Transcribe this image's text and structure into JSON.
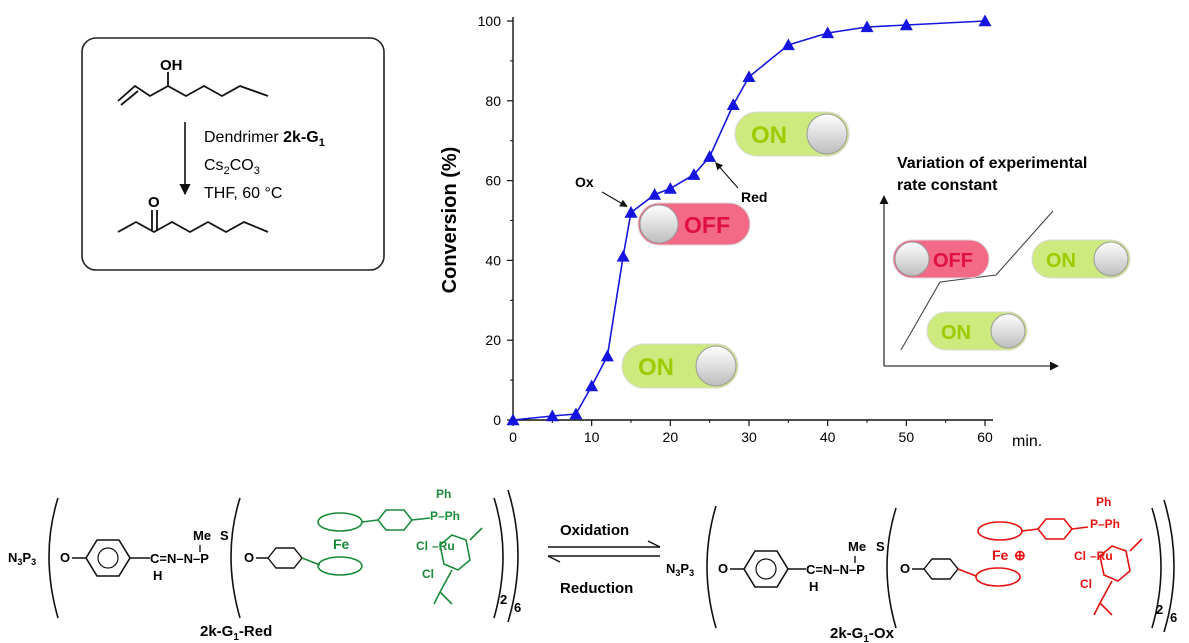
{
  "reaction": {
    "reagent_prefix": "Dendrimer ",
    "reagent_bold": "2k-G",
    "reagent_sub": "1",
    "base_main": "Cs",
    "base_sub1": "2",
    "base_mid": "CO",
    "base_sub2": "3",
    "conditions": "THF, 60 °C",
    "oh_label": "OH",
    "o_label": "O"
  },
  "chart_data": {
    "type": "line",
    "title": "",
    "xlabel": "min.",
    "ylabel": "Conversion (%)",
    "xlim": [
      0,
      62
    ],
    "ylim": [
      0,
      100
    ],
    "x_ticks": [
      0,
      10,
      20,
      30,
      40,
      50,
      60
    ],
    "y_ticks": [
      0,
      20,
      40,
      60,
      80,
      100
    ],
    "series_color": "#1515e0",
    "marker": "triangle",
    "x": [
      0,
      5,
      8,
      10,
      12,
      14,
      15,
      18,
      20,
      23,
      25,
      28,
      30,
      35,
      40,
      45,
      50,
      60
    ],
    "y": [
      0,
      1,
      1.5,
      8.5,
      16,
      41,
      52,
      56.5,
      58,
      61.5,
      66,
      79,
      86,
      94,
      97,
      98.5,
      99,
      100
    ],
    "annotations": [
      {
        "text": "Ox",
        "at_x": 15,
        "at_y": 52
      },
      {
        "text": "Red",
        "at_x": 25,
        "at_y": 66
      }
    ],
    "switches": {
      "on_label": "ON",
      "off_label": "OFF",
      "on_color": "#cdea7e",
      "off_color": "#f36a86"
    }
  },
  "inset": {
    "title_line1": "Variation of experimental",
    "title_line2": "rate constant"
  },
  "scheme": {
    "left_label": "2k-G",
    "left_sub": "1",
    "left_suffix": "-Red",
    "right_label": "2k-G",
    "right_sub": "1",
    "right_suffix": "-Ox",
    "oxidation": "Oxidation",
    "reduction": "Reduction",
    "core": "N",
    "core_sub3a": "3",
    "core_p": "P",
    "core_sub3b": "3",
    "o": "O",
    "hydrazone": "C=N–N–P",
    "h": "H",
    "me": "Me",
    "s": "S",
    "fe": "Fe",
    "fe_plus": "⊕",
    "ph": "Ph",
    "ph2": "P–Ph",
    "cl": "Cl",
    "ru": "–Ru",
    "rep2": "2",
    "rep6": "6",
    "red_color": "#e81010",
    "green_color": "#1a8a3a"
  }
}
